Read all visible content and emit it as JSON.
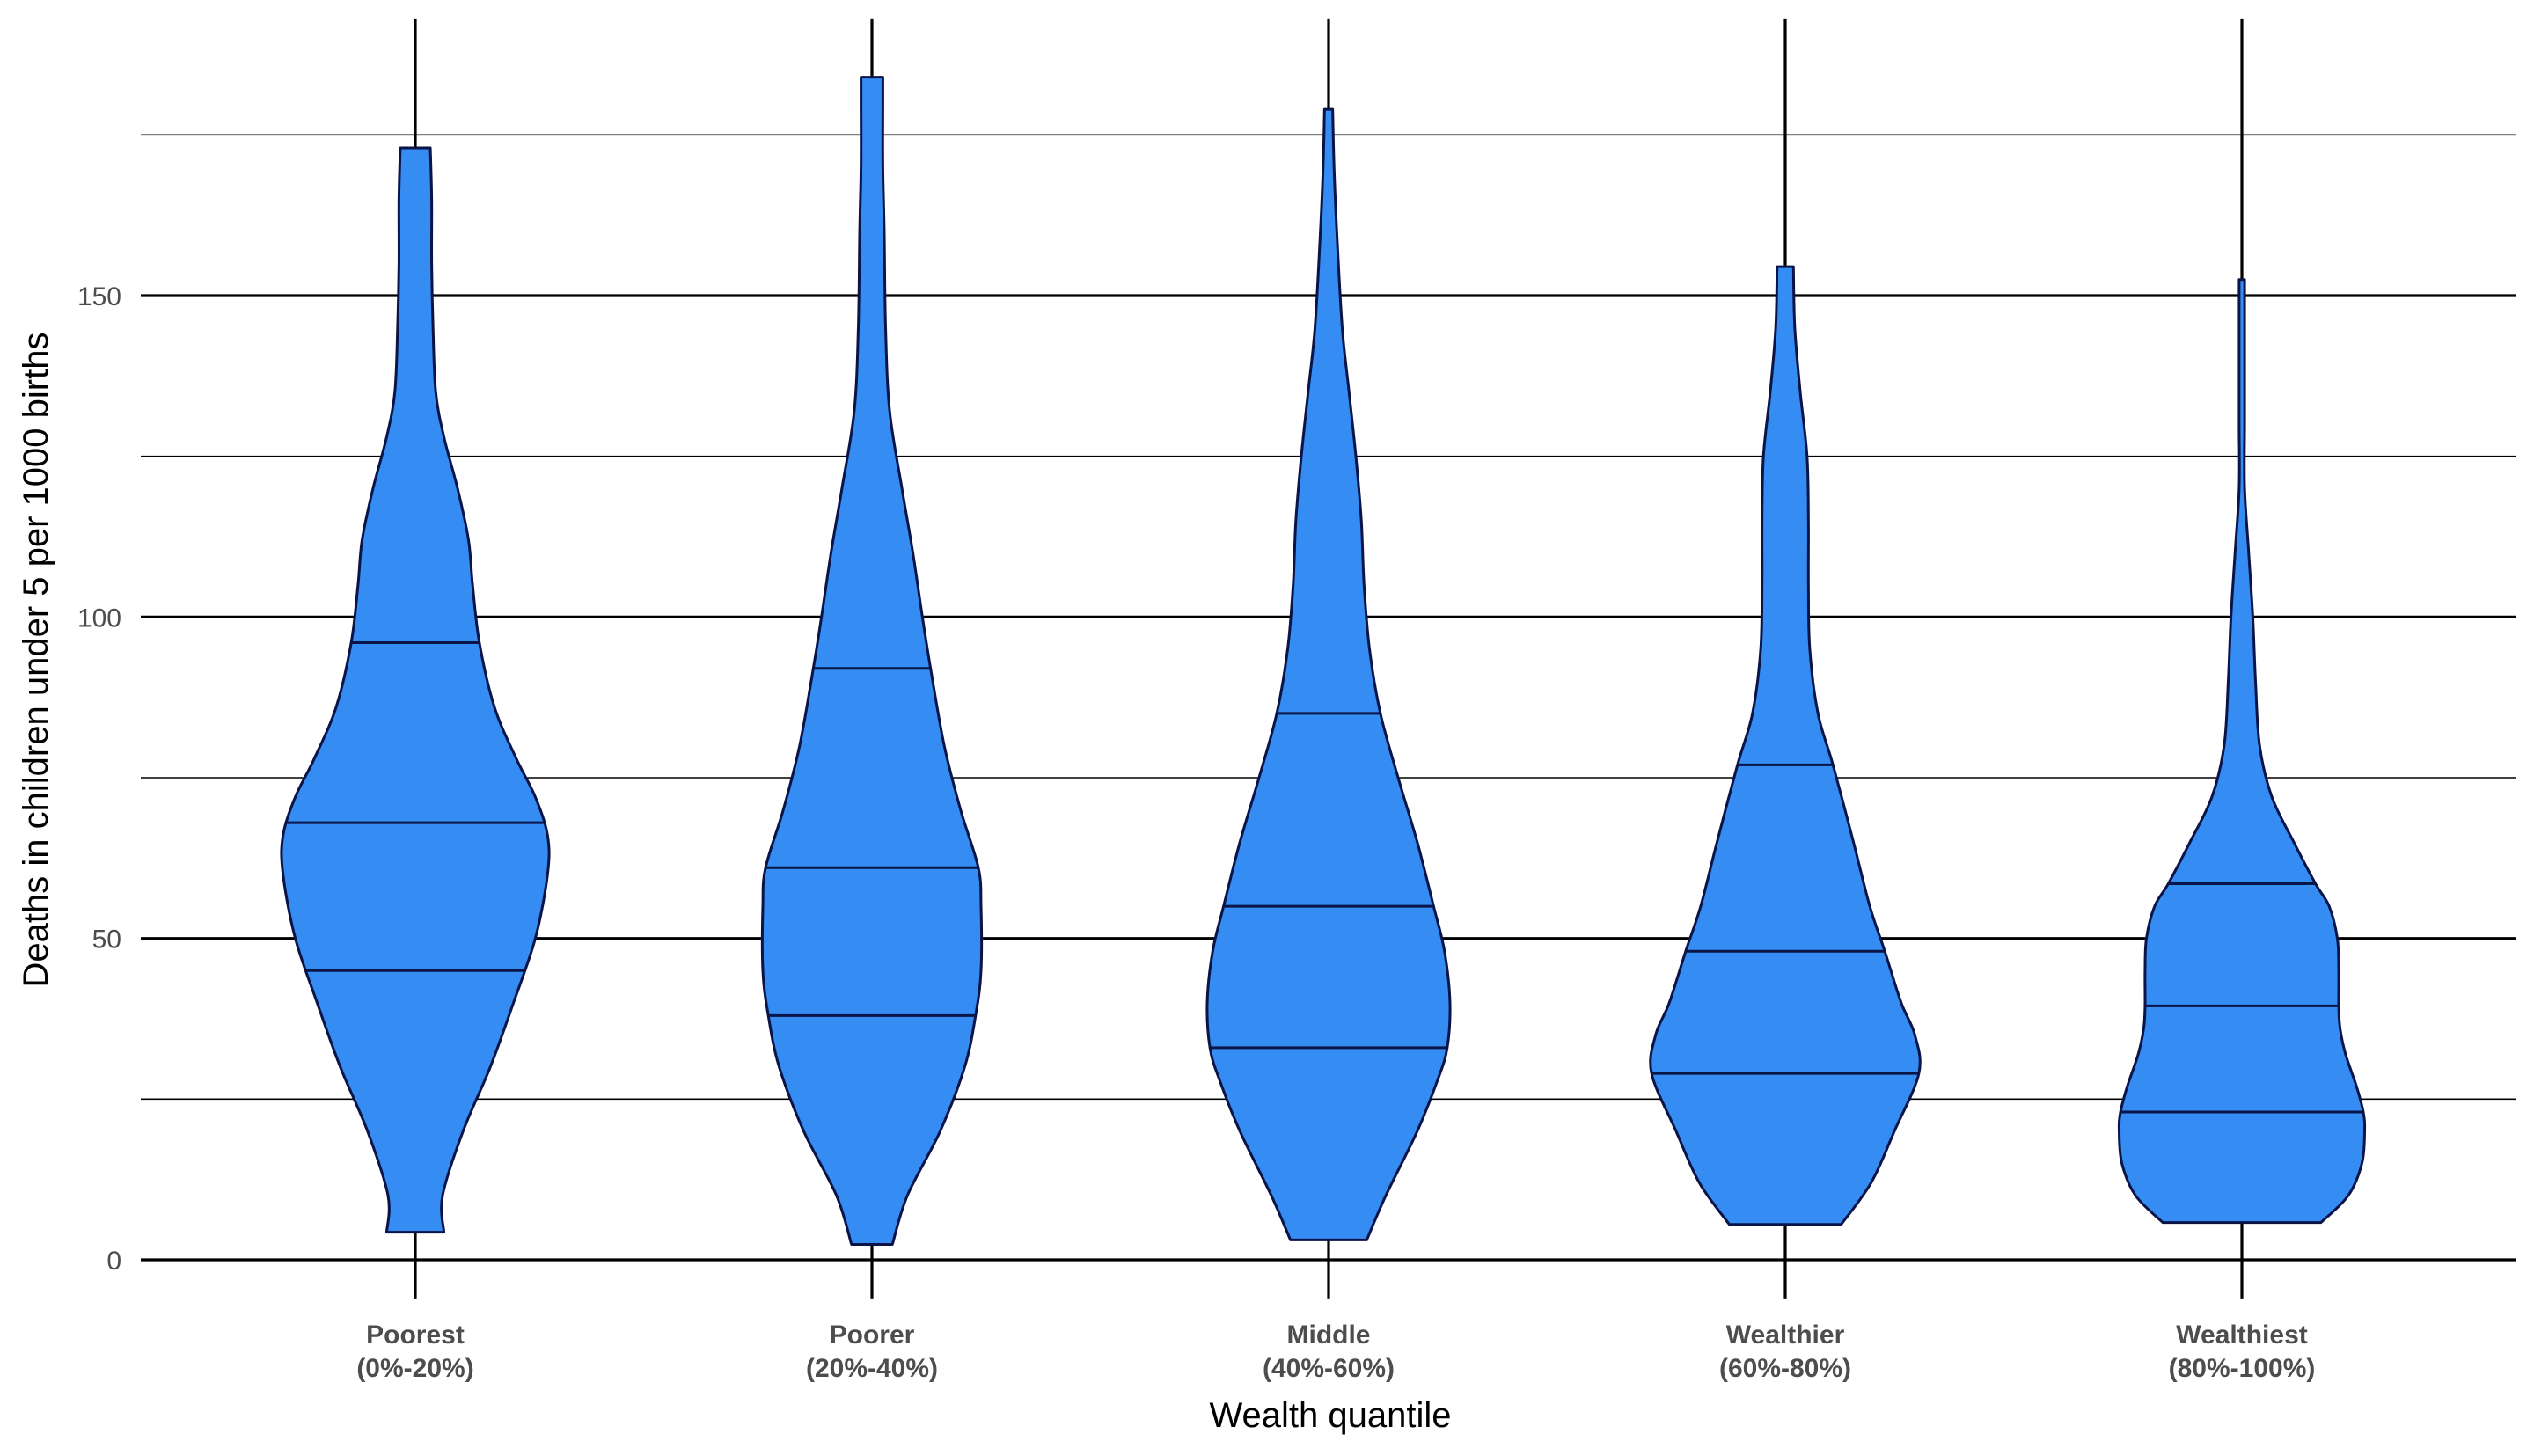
{
  "chart_data": {
    "type": "violin",
    "xlabel": "Wealth quantile",
    "ylabel": "Deaths in children under 5 per 1000 births",
    "ylim": [
      0,
      184
    ],
    "yticks": [
      0,
      50,
      100,
      150
    ],
    "grid": "horizontal major and minor lines",
    "fill_color": "#358CF2",
    "outline_color": "#0B1446",
    "categories": [
      {
        "line1": "Poorest",
        "line2": "(0%-20%)",
        "min": 4.3,
        "q1": 45,
        "median": 68,
        "q3": 96,
        "max": 173,
        "whisker_low": -6,
        "whisker_high": 193,
        "profile": [
          [
            4.3,
            0.21
          ],
          [
            10,
            0.2
          ],
          [
            20,
            0.35
          ],
          [
            30,
            0.55
          ],
          [
            40,
            0.72
          ],
          [
            50,
            0.88
          ],
          [
            60,
            0.97
          ],
          [
            66,
            0.97
          ],
          [
            72,
            0.88
          ],
          [
            78,
            0.74
          ],
          [
            86,
            0.58
          ],
          [
            96,
            0.47
          ],
          [
            105,
            0.42
          ],
          [
            112,
            0.39
          ],
          [
            120,
            0.31
          ],
          [
            128,
            0.21
          ],
          [
            135,
            0.15
          ],
          [
            145,
            0.13
          ],
          [
            155,
            0.12
          ],
          [
            165,
            0.12
          ],
          [
            173,
            0.11
          ]
        ]
      },
      {
        "line1": "Poorer",
        "line2": "(20%-40%)",
        "min": 2.4,
        "q1": 38,
        "median": 61,
        "q3": 92,
        "max": 184,
        "whisker_low": -6,
        "whisker_high": 193,
        "profile": [
          [
            2.4,
            0.15
          ],
          [
            10,
            0.26
          ],
          [
            20,
            0.5
          ],
          [
            30,
            0.68
          ],
          [
            38,
            0.76
          ],
          [
            45,
            0.8
          ],
          [
            55,
            0.8
          ],
          [
            61,
            0.78
          ],
          [
            70,
            0.65
          ],
          [
            80,
            0.53
          ],
          [
            92,
            0.43
          ],
          [
            100,
            0.37
          ],
          [
            110,
            0.3
          ],
          [
            120,
            0.22
          ],
          [
            132,
            0.13
          ],
          [
            145,
            0.1
          ],
          [
            160,
            0.09
          ],
          [
            170,
            0.08
          ],
          [
            180,
            0.08
          ],
          [
            184,
            0.08
          ]
        ]
      },
      {
        "line1": "Middle",
        "line2": "(40%-60%)",
        "min": 3.1,
        "q1": 33,
        "median": 55,
        "q3": 85,
        "max": 179,
        "whisker_low": -6,
        "whisker_high": 193,
        "profile": [
          [
            3.1,
            0.28
          ],
          [
            10,
            0.42
          ],
          [
            20,
            0.65
          ],
          [
            28,
            0.8
          ],
          [
            33,
            0.87
          ],
          [
            40,
            0.89
          ],
          [
            48,
            0.85
          ],
          [
            55,
            0.77
          ],
          [
            65,
            0.65
          ],
          [
            75,
            0.51
          ],
          [
            85,
            0.38
          ],
          [
            95,
            0.3
          ],
          [
            105,
            0.26
          ],
          [
            115,
            0.24
          ],
          [
            125,
            0.2
          ],
          [
            135,
            0.15
          ],
          [
            145,
            0.1
          ],
          [
            160,
            0.06
          ],
          [
            170,
            0.04
          ],
          [
            179,
            0.03
          ]
        ]
      },
      {
        "line1": "Wealthier",
        "line2": "(60%-80%)",
        "min": 5.5,
        "q1": 29,
        "median": 48,
        "q3": 77,
        "max": 154.5,
        "whisker_low": -6,
        "whisker_high": 193,
        "profile": [
          [
            5.5,
            0.41
          ],
          [
            12,
            0.63
          ],
          [
            20,
            0.8
          ],
          [
            29,
            0.98
          ],
          [
            35,
            0.95
          ],
          [
            40,
            0.85
          ],
          [
            48,
            0.73
          ],
          [
            55,
            0.62
          ],
          [
            65,
            0.5
          ],
          [
            77,
            0.35
          ],
          [
            85,
            0.24
          ],
          [
            95,
            0.18
          ],
          [
            105,
            0.17
          ],
          [
            115,
            0.17
          ],
          [
            125,
            0.16
          ],
          [
            135,
            0.11
          ],
          [
            145,
            0.07
          ],
          [
            154.5,
            0.06
          ]
        ]
      },
      {
        "line1": "Wealthiest",
        "line2": "(80%-100%)",
        "min": 5.8,
        "q1": 23,
        "median": 39.5,
        "q3": 58.5,
        "max": 152.5,
        "whisker_low": -6,
        "whisker_high": 193,
        "profile": [
          [
            5.8,
            0.58
          ],
          [
            10,
            0.78
          ],
          [
            15,
            0.88
          ],
          [
            20,
            0.9
          ],
          [
            23,
            0.89
          ],
          [
            27,
            0.84
          ],
          [
            32,
            0.76
          ],
          [
            36,
            0.72
          ],
          [
            39.5,
            0.71
          ],
          [
            45,
            0.71
          ],
          [
            50,
            0.7
          ],
          [
            55,
            0.64
          ],
          [
            58.5,
            0.54
          ],
          [
            65,
            0.38
          ],
          [
            72,
            0.22
          ],
          [
            80,
            0.13
          ],
          [
            90,
            0.1
          ],
          [
            100,
            0.08
          ],
          [
            110,
            0.05
          ],
          [
            120,
            0.02
          ],
          [
            130,
            0.02
          ],
          [
            140,
            0.02
          ],
          [
            152.5,
            0.02
          ]
        ]
      }
    ]
  }
}
